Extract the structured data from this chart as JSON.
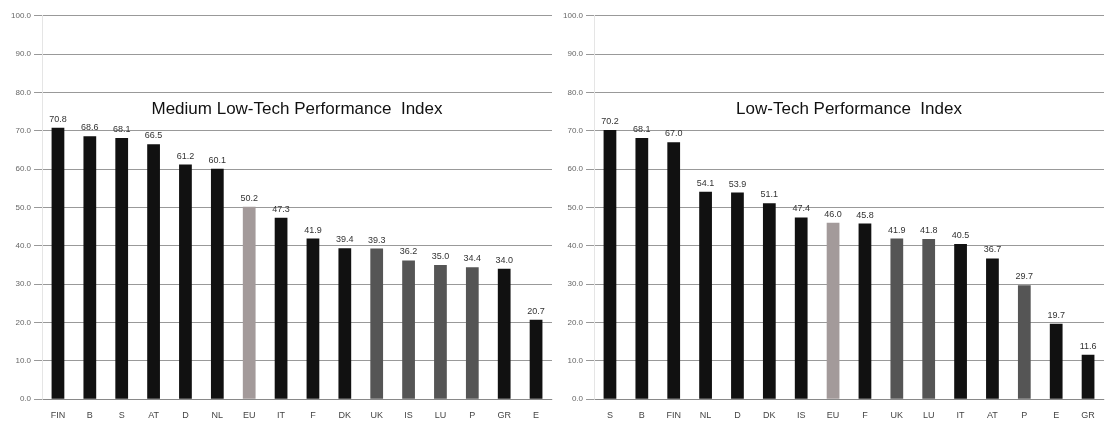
{
  "chart_data": [
    {
      "type": "bar",
      "title": "Medium Low-Tech Performance  Index",
      "categories": [
        "FIN",
        "B",
        "S",
        "AT",
        "D",
        "NL",
        "EU",
        "IT",
        "F",
        "DK",
        "UK",
        "IS",
        "LU",
        "P",
        "GR",
        "E"
      ],
      "values": [
        70.8,
        68.6,
        68.1,
        66.5,
        61.2,
        60.1,
        50.2,
        47.3,
        41.9,
        39.4,
        39.3,
        36.2,
        35.0,
        34.4,
        34.0,
        20.7
      ],
      "value_labels": [
        "70.8",
        "68.6",
        "68.1",
        "66.5",
        "61.2",
        "60.1",
        "50.2",
        "47.3",
        "41.9",
        "39.4",
        "39.3",
        "36.2",
        "35.0",
        "34.4",
        "34.0",
        "20.7"
      ],
      "colors": [
        "#111111",
        "#111111",
        "#111111",
        "#111111",
        "#111111",
        "#111111",
        "#a39a9a",
        "#111111",
        "#111111",
        "#111111",
        "#555555",
        "#555555",
        "#555555",
        "#555555",
        "#111111",
        "#111111"
      ],
      "ylim": [
        0,
        100
      ],
      "yticks": [
        {
          "value": 0,
          "label": "0.0"
        },
        {
          "value": 10,
          "label": "10.0"
        },
        {
          "value": 20,
          "label": "20.0"
        },
        {
          "value": 30,
          "label": "30.0"
        },
        {
          "value": 40,
          "label": "40.0"
        },
        {
          "value": 50,
          "label": "50.0"
        },
        {
          "value": 60,
          "label": "60.0"
        },
        {
          "value": 70,
          "label": "70.0"
        },
        {
          "value": 80,
          "label": "80.0"
        },
        {
          "value": 90,
          "label": "90.0"
        },
        {
          "value": 100,
          "label": "100.0"
        }
      ],
      "grid": "y",
      "legend": false
    },
    {
      "type": "bar",
      "title": "Low-Tech Performance  Index",
      "categories": [
        "S",
        "B",
        "FIN",
        "NL",
        "D",
        "DK",
        "IS",
        "EU",
        "F",
        "UK",
        "LU",
        "IT",
        "AT",
        "P",
        "E",
        "GR"
      ],
      "values": [
        70.2,
        68.1,
        67.0,
        54.1,
        53.9,
        51.1,
        47.4,
        46.0,
        45.8,
        41.9,
        41.8,
        40.5,
        36.7,
        29.7,
        19.7,
        11.6
      ],
      "value_labels": [
        "70.2",
        "68.1",
        "67.0",
        "54.1",
        "53.9",
        "51.1",
        "47.4",
        "46.0",
        "45.8",
        "41.9",
        "41.8",
        "40.5",
        "36.7",
        "29.7",
        "19.7",
        "11.6"
      ],
      "colors": [
        "#111111",
        "#111111",
        "#111111",
        "#111111",
        "#111111",
        "#111111",
        "#111111",
        "#a39a9a",
        "#111111",
        "#555555",
        "#555555",
        "#111111",
        "#111111",
        "#555555",
        "#111111",
        "#111111"
      ],
      "ylim": [
        0,
        100
      ],
      "yticks": [
        {
          "value": 0,
          "label": "0.0"
        },
        {
          "value": 10,
          "label": "10.0"
        },
        {
          "value": 20,
          "label": "20.0"
        },
        {
          "value": 30,
          "label": "30.0"
        },
        {
          "value": 40,
          "label": "40.0"
        },
        {
          "value": 50,
          "label": "50.0"
        },
        {
          "value": 60,
          "label": "60.0"
        },
        {
          "value": 70,
          "label": "70.0"
        },
        {
          "value": 80,
          "label": "80.0"
        },
        {
          "value": 90,
          "label": "90.0"
        },
        {
          "value": 100,
          "label": "100.0"
        }
      ],
      "grid": "y",
      "legend": false
    }
  ]
}
